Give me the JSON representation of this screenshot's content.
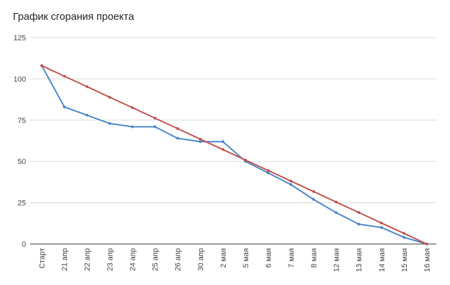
{
  "chart_data": {
    "type": "line",
    "title": "График сгорания проекта",
    "xlabel": "",
    "ylabel": "",
    "categories": [
      "Старт",
      "21 апр",
      "22 апр",
      "23 апр",
      "24 апр",
      "25 апр",
      "26 апр",
      "30 апр",
      "2 мая",
      "5 мая",
      "6 мая",
      "7 мая",
      "8 мая",
      "12 мая",
      "13 мая",
      "14 мая",
      "15 мая",
      "16 мая"
    ],
    "ylim": [
      0,
      125
    ],
    "yticks": [
      0,
      25,
      50,
      75,
      100,
      125
    ],
    "grid": true,
    "legend": "none",
    "series": [
      {
        "color": "#4a86c8",
        "values": [
          108,
          83,
          78,
          73,
          71,
          71,
          64,
          62,
          62,
          50,
          43,
          36,
          27,
          19,
          12,
          10,
          4,
          0
        ]
      },
      {
        "color": "#c0504d",
        "values": [
          108,
          101.6,
          95.3,
          88.9,
          82.6,
          76.2,
          69.9,
          63.5,
          57.2,
          50.8,
          44.5,
          38.1,
          31.8,
          25.4,
          19.1,
          12.7,
          6.4,
          0
        ]
      }
    ]
  }
}
